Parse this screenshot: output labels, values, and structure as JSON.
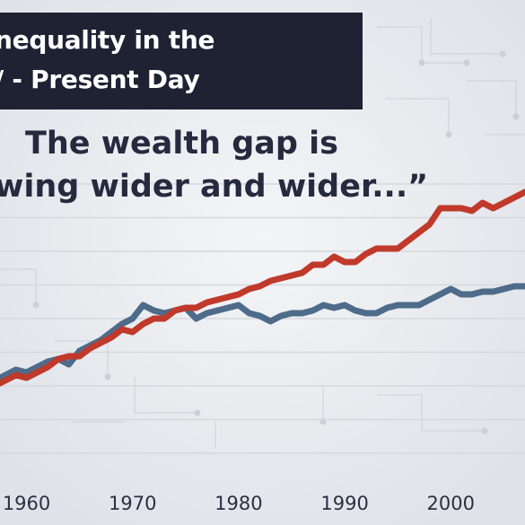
{
  "header": {
    "title_line1": "nequality in the",
    "title_line2": "/ - Present Day"
  },
  "quote": {
    "line1": "The wealth gap is",
    "line2": "wing wider and wider...”"
  },
  "colors": {
    "background": "#eceef2",
    "title_bg": "#1f2233",
    "red_series": "#c0392b",
    "blue_series": "#4e6b8a",
    "grid": "#d5d8de"
  },
  "chart_data": {
    "type": "line",
    "title": "",
    "xlabel": "",
    "ylabel": "",
    "xlim": [
      1957.5,
      2007
    ],
    "ylim": [
      0,
      100
    ],
    "x_ticks": [
      "1960",
      "1970",
      "1980",
      "1990",
      "2000"
    ],
    "grid": true,
    "x": [
      1957.5,
      1959,
      1960,
      1961,
      1962,
      1963,
      1964,
      1965,
      1966,
      1967,
      1968,
      1969,
      1970,
      1971,
      1972,
      1973,
      1974,
      1975,
      1976,
      1977,
      1978,
      1979,
      1980,
      1981,
      1982,
      1983,
      1984,
      1985,
      1986,
      1987,
      1988,
      1989,
      1990,
      1991,
      1992,
      1993,
      1994,
      1995,
      1996,
      1997,
      1998,
      1999,
      2000,
      2001,
      2002,
      2003,
      2004,
      2005,
      2006,
      2007
    ],
    "series": [
      {
        "values": [
          26,
          29,
          28,
          30,
          32,
          35,
          36,
          36,
          39,
          41,
          43,
          46,
          45,
          48,
          50,
          50,
          53,
          54,
          54,
          56,
          57,
          58,
          59,
          61,
          62,
          64,
          65,
          66,
          67,
          70,
          70,
          73,
          71,
          71,
          74,
          76,
          76,
          76,
          79,
          82,
          85,
          91,
          91,
          91,
          90,
          93,
          91,
          93,
          95,
          97
        ]
      },
      {
        "values": [
          28,
          31,
          30,
          32,
          34,
          35,
          33,
          38,
          40,
          42,
          45,
          48,
          50,
          55,
          53,
          52,
          53,
          54,
          50,
          52,
          53,
          54,
          55,
          52,
          51,
          49,
          51,
          52,
          52,
          53,
          55,
          54,
          55,
          53,
          52,
          52,
          54,
          55,
          55,
          55,
          57,
          59,
          61,
          59,
          59,
          60,
          60,
          61,
          62,
          62
        ]
      }
    ]
  }
}
